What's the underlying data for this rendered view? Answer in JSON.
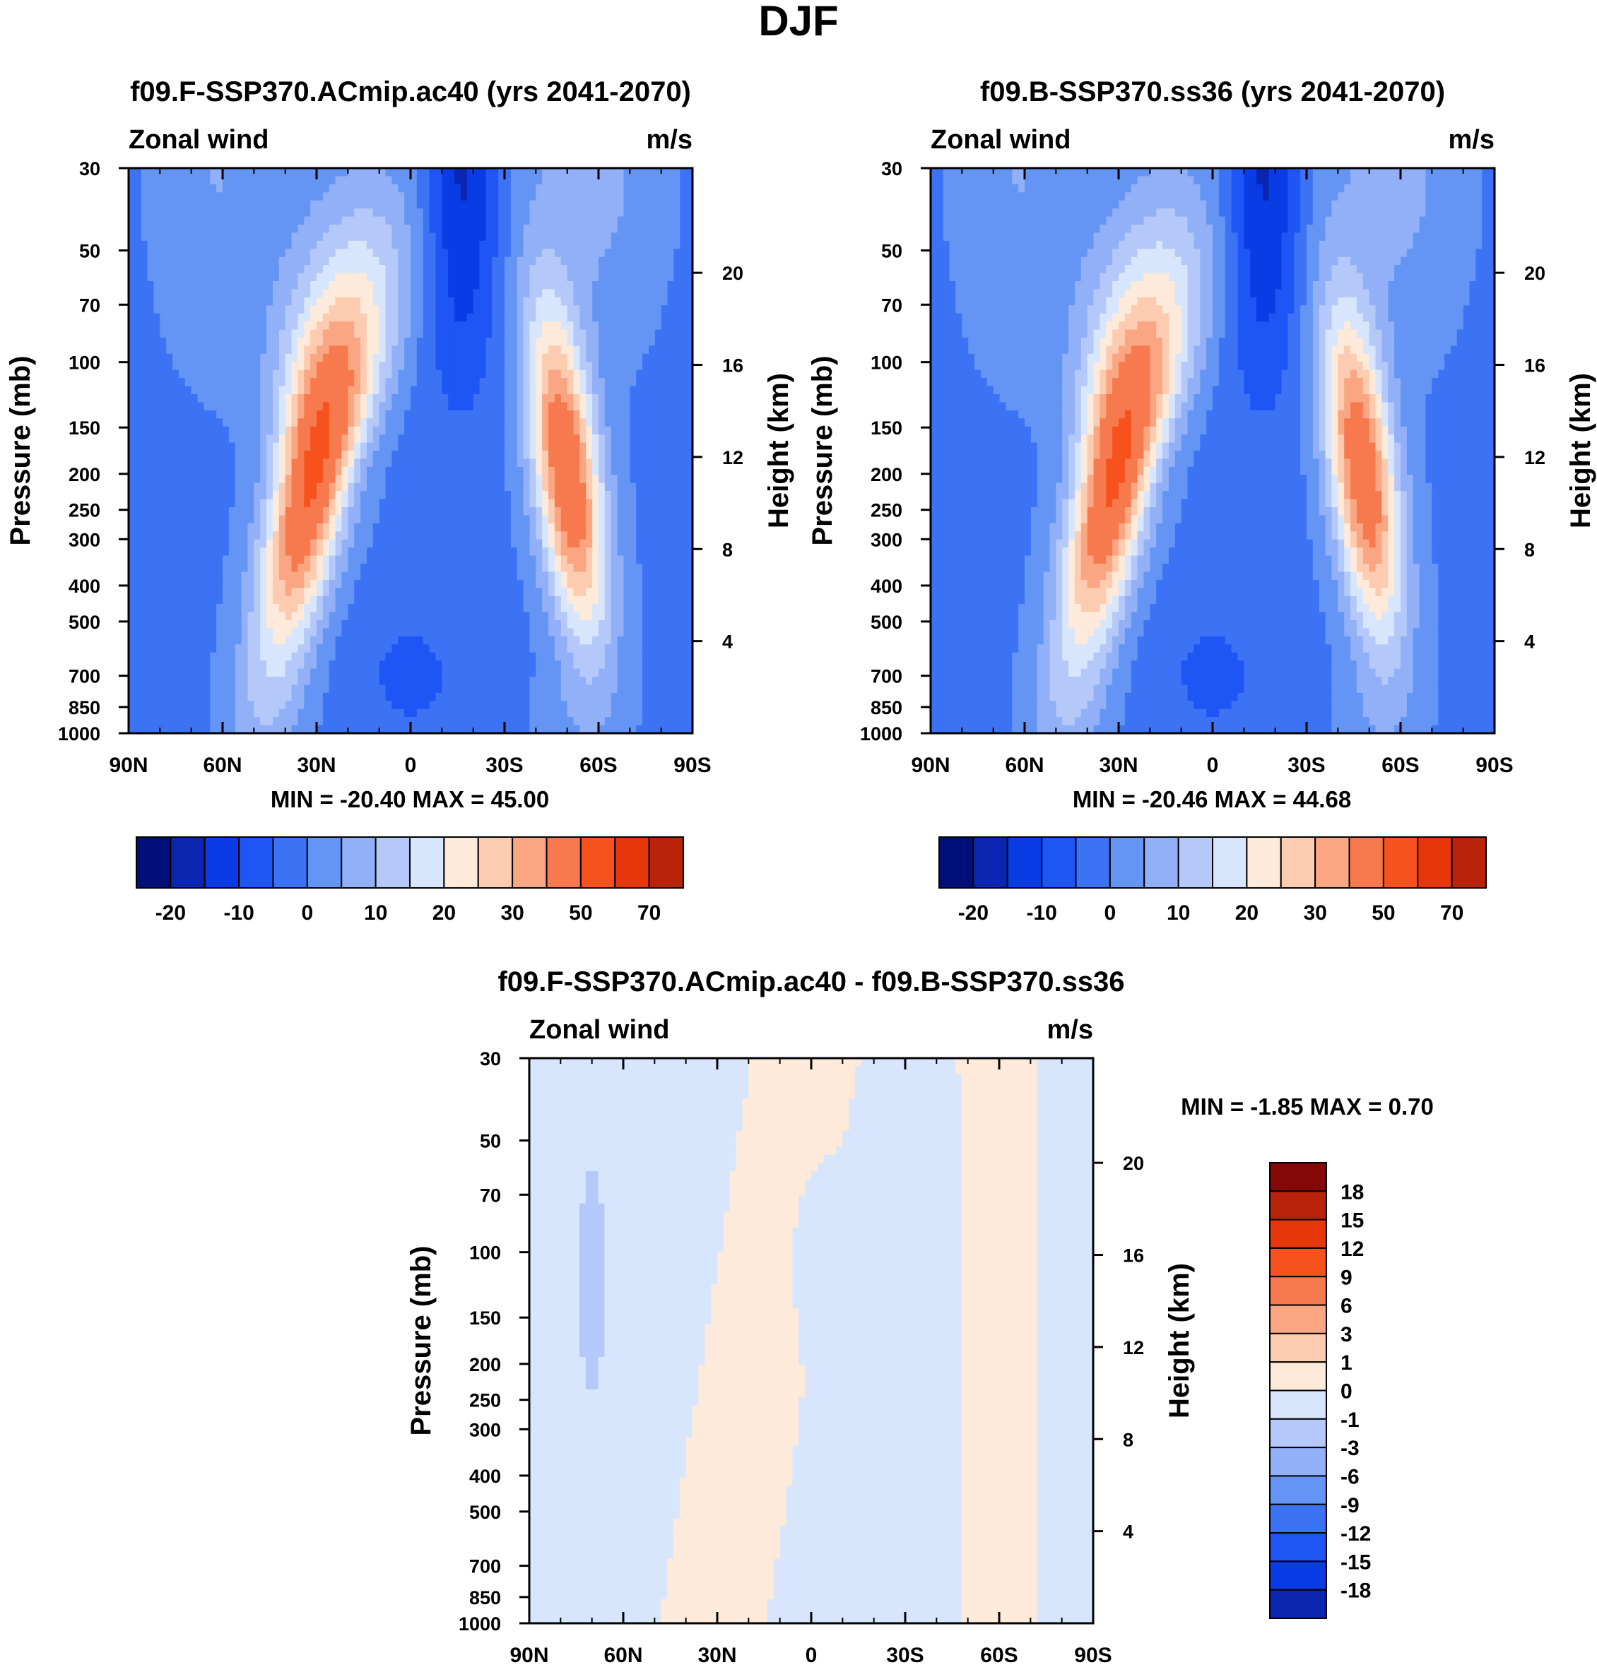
{
  "figure": {
    "title": "DJF"
  },
  "colors": {
    "b9": "#000f7a",
    "b8": "#0a26b0",
    "b7": "#0a3ce6",
    "b6": "#1e55f5",
    "b5": "#3c73f5",
    "b4": "#6495f5",
    "b3": "#91b0f7",
    "b2": "#b4c8fa",
    "b1": "#d7e6fc",
    "r1": "#fdeada",
    "r2": "#fccbb0",
    "r3": "#faa682",
    "r4": "#f77a4f",
    "r5": "#f7521e",
    "r6": "#e6370a",
    "r7": "#b8230a",
    "r8": "#850808"
  },
  "chart_data": [
    {
      "id": "panel-a",
      "type": "heatmap",
      "title": "f09.F-SSP370.ACmip.ac40 (yrs 2041-2070)",
      "left_label": "Zonal wind",
      "right_label": "m/s",
      "ylabel": "Pressure (mb)",
      "y2label": "Height (km)",
      "xticks": [
        "90N",
        "60N",
        "30N",
        "0",
        "30S",
        "60S",
        "90S"
      ],
      "yticks": [
        30,
        50,
        70,
        100,
        150,
        200,
        250,
        300,
        400,
        500,
        700,
        850,
        1000
      ],
      "y2ticks": [
        20,
        16,
        12,
        8,
        4
      ],
      "xlim": [
        90,
        -90
      ],
      "ylim": [
        1000,
        30
      ],
      "stats": "MIN = -20.40  MAX =  45.00",
      "jets": [
        {
          "lat": 31,
          "p": 180,
          "max": 45.0
        },
        {
          "lat": -50,
          "p": 200,
          "max": 38.0
        }
      ],
      "min_value": -20.4,
      "colorbar": {
        "levels": [
          -20,
          -15,
          -10,
          -5,
          0,
          5,
          10,
          15,
          20,
          25,
          30,
          40,
          50,
          60,
          70
        ],
        "labels": [
          "-20",
          "-10",
          "0",
          "10",
          "20",
          "30",
          "50",
          "70"
        ]
      }
    },
    {
      "id": "panel-b",
      "type": "heatmap",
      "title": "f09.B-SSP370.ss36 (yrs 2041-2070)",
      "left_label": "Zonal wind",
      "right_label": "m/s",
      "ylabel": "Pressure (mb)",
      "y2label": "Height (km)",
      "xticks": [
        "90N",
        "60N",
        "30N",
        "0",
        "30S",
        "60S",
        "90S"
      ],
      "yticks": [
        30,
        50,
        70,
        100,
        150,
        200,
        250,
        300,
        400,
        500,
        700,
        850,
        1000
      ],
      "y2ticks": [
        20,
        16,
        12,
        8,
        4
      ],
      "xlim": [
        90,
        -90
      ],
      "ylim": [
        1000,
        30
      ],
      "stats": "MIN = -20.46  MAX =  44.68",
      "jets": [
        {
          "lat": 31,
          "p": 180,
          "max": 44.68
        },
        {
          "lat": -48,
          "p": 200,
          "max": 37.0
        }
      ],
      "min_value": -20.46,
      "colorbar": {
        "levels": [
          -20,
          -15,
          -10,
          -5,
          0,
          5,
          10,
          15,
          20,
          25,
          30,
          40,
          50,
          60,
          70
        ],
        "labels": [
          "-20",
          "-10",
          "0",
          "10",
          "20",
          "30",
          "50",
          "70"
        ]
      }
    },
    {
      "id": "panel-diff",
      "type": "heatmap",
      "title": "f09.F-SSP370.ACmip.ac40 - f09.B-SSP370.ss36",
      "left_label": "Zonal wind",
      "right_label": "m/s",
      "ylabel": "Pressure (mb)",
      "y2label": "Height (km)",
      "xticks": [
        "90N",
        "60N",
        "30N",
        "0",
        "30S",
        "60S",
        "90S"
      ],
      "yticks": [
        30,
        50,
        70,
        100,
        150,
        200,
        250,
        300,
        400,
        500,
        700,
        850,
        1000
      ],
      "y2ticks": [
        20,
        16,
        12,
        8,
        4
      ],
      "xlim": [
        90,
        -90
      ],
      "ylim": [
        1000,
        30
      ],
      "stats": "MIN =  -1.85  MAX =    0.70",
      "min_value": -1.85,
      "max_value": 0.7,
      "colorbar": {
        "levels": [
          -18,
          -15,
          -12,
          -9,
          -6,
          -3,
          -1,
          0,
          1,
          3,
          6,
          9,
          12,
          15,
          18
        ],
        "labels": [
          "18",
          "15",
          "12",
          "9",
          "6",
          "3",
          "1",
          "0",
          "-1",
          "-3",
          "-6",
          "-9",
          "-12",
          "-15",
          "-18"
        ]
      }
    }
  ]
}
